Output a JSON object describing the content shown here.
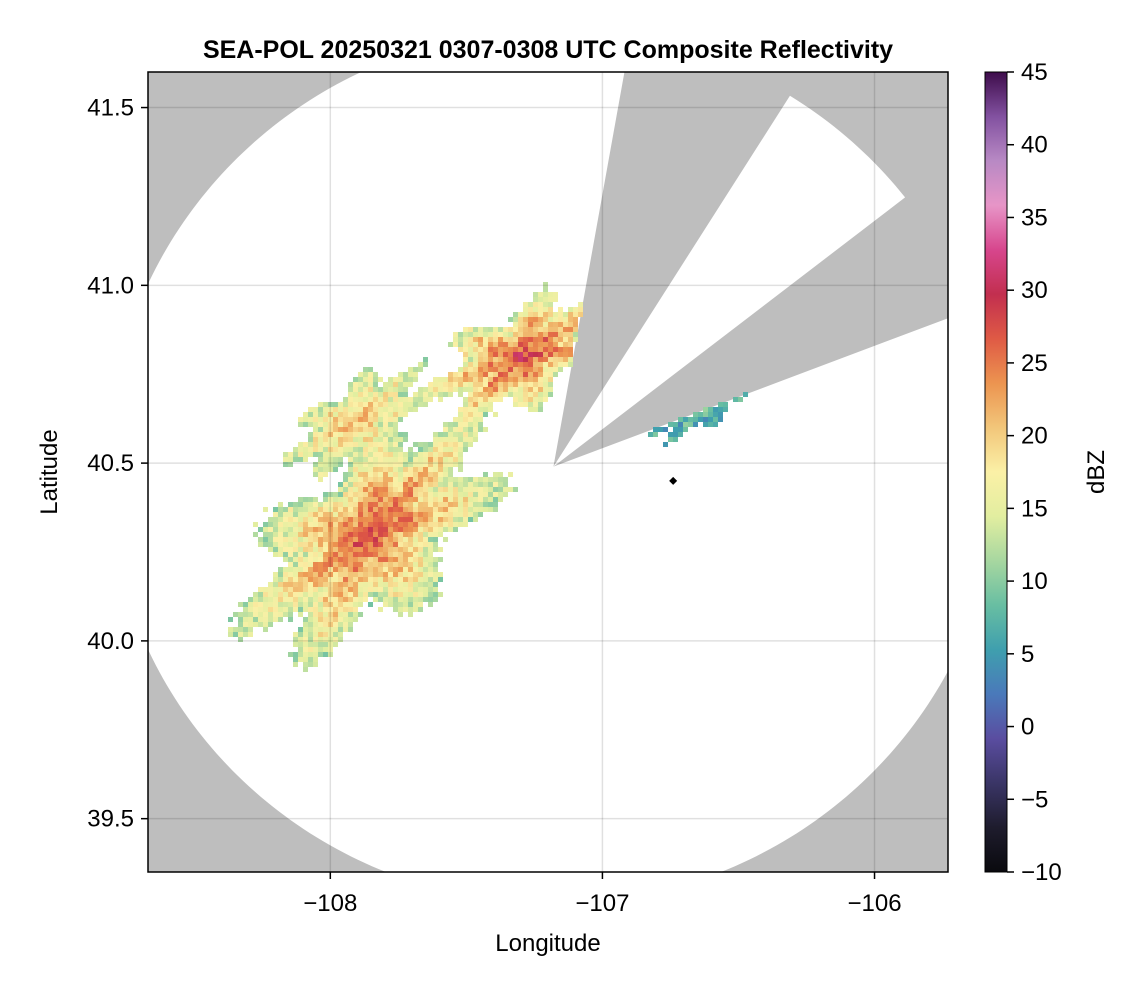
{
  "chart_data": {
    "type": "heatmap",
    "title": "SEA-POL 20250321 0307-0308 UTC Composite Reflectivity",
    "xlabel": "Longitude",
    "ylabel": "Latitude",
    "xlim": [
      -108.67,
      -105.73
    ],
    "ylim": [
      39.35,
      41.6
    ],
    "x_ticks": [
      -108,
      -107,
      -106
    ],
    "x_tick_labels": [
      "−108",
      "−107",
      "−106"
    ],
    "y_ticks": [
      39.5,
      40.0,
      40.5,
      41.0,
      41.5
    ],
    "y_tick_labels": [
      "39.5",
      "40.0",
      "40.5",
      "41.0",
      "41.5"
    ],
    "grid": true,
    "background_color": "#bebebe",
    "colorbar": {
      "label": "dBZ",
      "range": [
        -10,
        45
      ],
      "ticks": [
        -10,
        -5,
        0,
        5,
        10,
        15,
        20,
        25,
        30,
        35,
        40,
        45
      ],
      "tick_labels": [
        "−10",
        "−5",
        "0",
        "5",
        "10",
        "15",
        "20",
        "25",
        "30",
        "35",
        "40",
        "45"
      ],
      "colormap": "spectral-like",
      "colors": [
        "#0a0a0e",
        "#1e1c2d",
        "#3a3566",
        "#5a4da0",
        "#4a79ba",
        "#3f9fae",
        "#68bea2",
        "#a7d7a0",
        "#e2eea0",
        "#fbf0a6",
        "#f2c67a",
        "#ec9450",
        "#df5a45",
        "#c22f4f",
        "#d7468d",
        "#e795c7",
        "#b889c4",
        "#8251a0",
        "#3e0c4b"
      ]
    },
    "radar_site": {
      "lon": -107.18,
      "lat": 40.49
    },
    "coverage": {
      "range_deg_lon": 1.64,
      "range_deg_lat": 1.23
    },
    "blocked_sectors_deg": [
      [
        10,
        32
      ],
      [
        52,
        69
      ]
    ],
    "marker": {
      "lon": -106.74,
      "lat": 40.45,
      "color": "#000000"
    },
    "echo_regions": [
      {
        "name": "southwest convective cluster",
        "center": [
          -107.85,
          40.3
        ],
        "radius_lon": 0.48,
        "radius_lat": 0.23,
        "rotation_deg": 30,
        "peak_dbz": 28,
        "base_dbz": 12
      },
      {
        "name": "northern convective cluster",
        "center": [
          -107.3,
          40.8
        ],
        "radius_lon": 0.32,
        "radius_lat": 0.13,
        "rotation_deg": 20,
        "peak_dbz": 29,
        "base_dbz": 14
      },
      {
        "name": "west scattered cells",
        "center": [
          -107.9,
          40.62
        ],
        "radius_lon": 0.25,
        "radius_lat": 0.1,
        "rotation_deg": 25,
        "peak_dbz": 22,
        "base_dbz": 13
      },
      {
        "name": "northeast light echoes",
        "center": [
          -106.6,
          40.67
        ],
        "radius_lon": 0.2,
        "radius_lat": 0.05,
        "rotation_deg": 25,
        "peak_dbz": 10,
        "base_dbz": 6
      }
    ]
  }
}
